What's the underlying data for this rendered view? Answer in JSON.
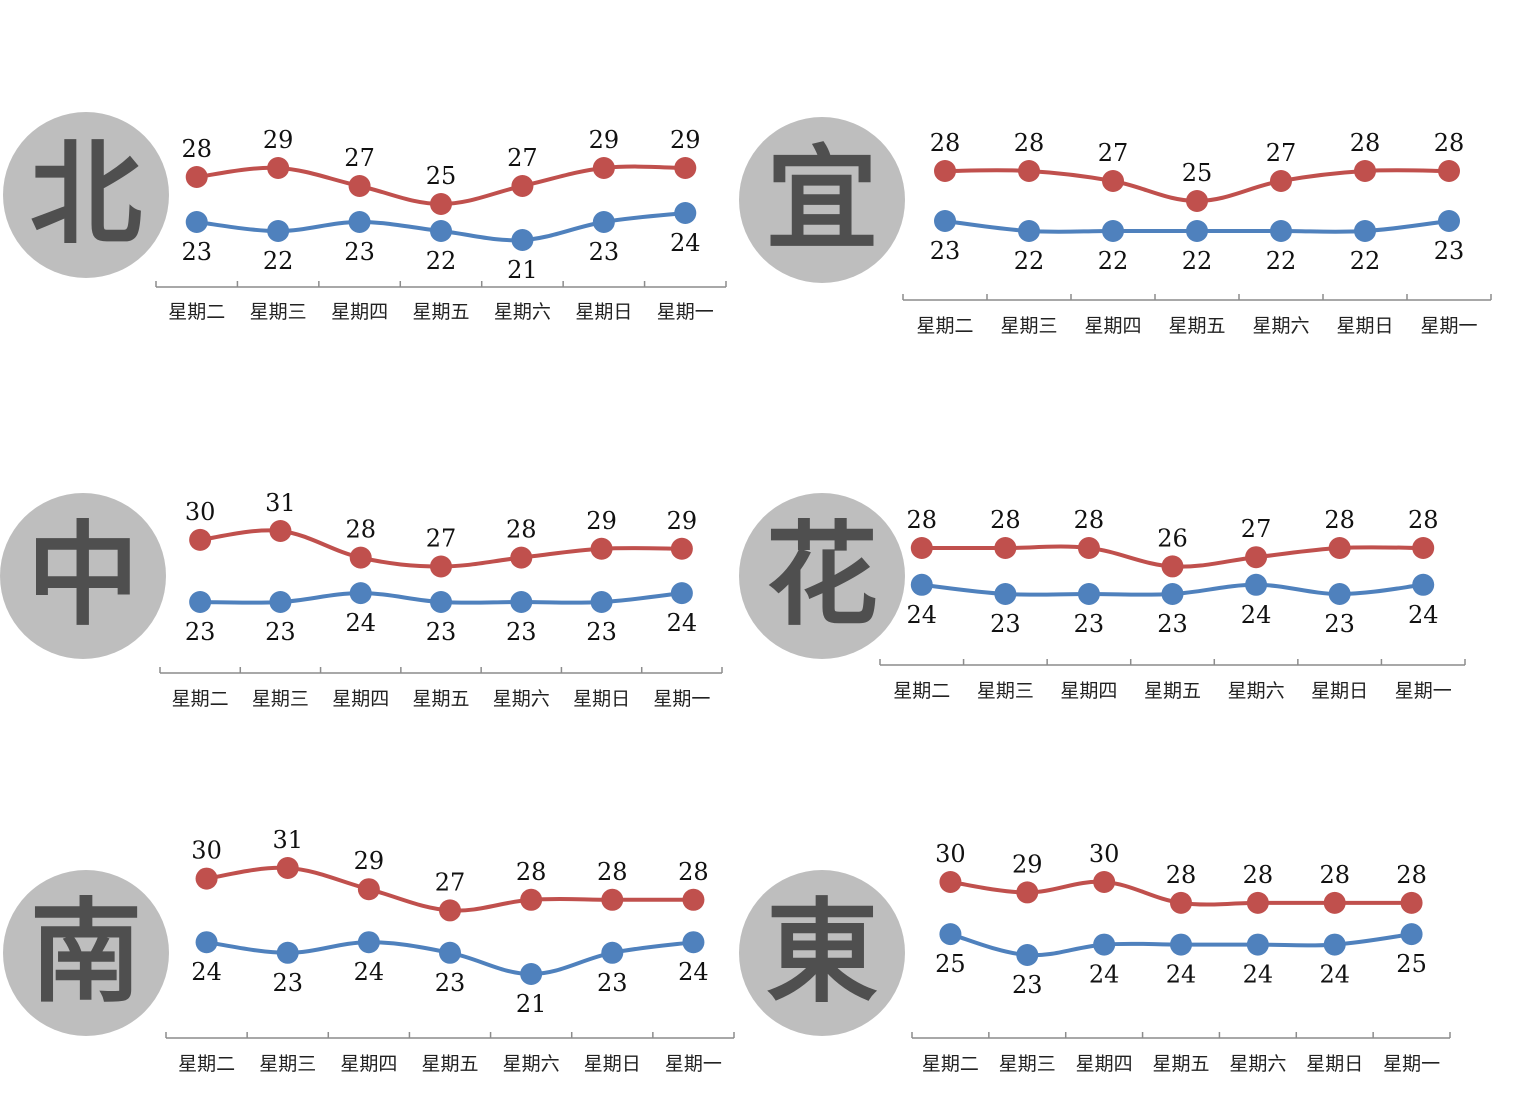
{
  "colors": {
    "high": "#c0504d",
    "low": "#4f81bd",
    "badge": "#bebebe",
    "badge_text": "#4f4f4f"
  },
  "chart_data": [
    {
      "type": "line",
      "city": "北",
      "categories": [
        "星期二",
        "星期三",
        "星期四",
        "星期五",
        "星期六",
        "星期日",
        "星期一"
      ],
      "series": [
        {
          "values": [
            28,
            29,
            27,
            25,
            27,
            29,
            29
          ]
        },
        {
          "values": [
            23,
            22,
            23,
            22,
            21,
            23,
            24
          ]
        }
      ]
    },
    {
      "type": "line",
      "city": "宜",
      "categories": [
        "星期二",
        "星期三",
        "星期四",
        "星期五",
        "星期六",
        "星期日",
        "星期一"
      ],
      "series": [
        {
          "values": [
            28,
            28,
            27,
            25,
            27,
            28,
            28
          ]
        },
        {
          "values": [
            23,
            22,
            22,
            22,
            22,
            22,
            23
          ]
        }
      ]
    },
    {
      "type": "line",
      "city": "中",
      "categories": [
        "星期二",
        "星期三",
        "星期四",
        "星期五",
        "星期六",
        "星期日",
        "星期一"
      ],
      "series": [
        {
          "values": [
            30,
            31,
            28,
            27,
            28,
            29,
            29
          ]
        },
        {
          "values": [
            23,
            23,
            24,
            23,
            23,
            23,
            24
          ]
        }
      ]
    },
    {
      "type": "line",
      "city": "花",
      "categories": [
        "星期二",
        "星期三",
        "星期四",
        "星期五",
        "星期六",
        "星期日",
        "星期一"
      ],
      "series": [
        {
          "values": [
            28,
            28,
            28,
            26,
            27,
            28,
            28
          ]
        },
        {
          "values": [
            24,
            23,
            23,
            23,
            24,
            23,
            24
          ]
        }
      ]
    },
    {
      "type": "line",
      "city": "南",
      "categories": [
        "星期二",
        "星期三",
        "星期四",
        "星期五",
        "星期六",
        "星期日",
        "星期一"
      ],
      "series": [
        {
          "values": [
            30,
            31,
            29,
            27,
            28,
            28,
            28
          ]
        },
        {
          "values": [
            24,
            23,
            24,
            23,
            21,
            23,
            24
          ]
        }
      ]
    },
    {
      "type": "line",
      "city": "東",
      "categories": [
        "星期二",
        "星期三",
        "星期四",
        "星期五",
        "星期六",
        "星期日",
        "星期一"
      ],
      "series": [
        {
          "values": [
            30,
            29,
            30,
            28,
            28,
            28,
            28
          ]
        },
        {
          "values": [
            25,
            23,
            24,
            24,
            24,
            24,
            25
          ]
        }
      ]
    }
  ]
}
